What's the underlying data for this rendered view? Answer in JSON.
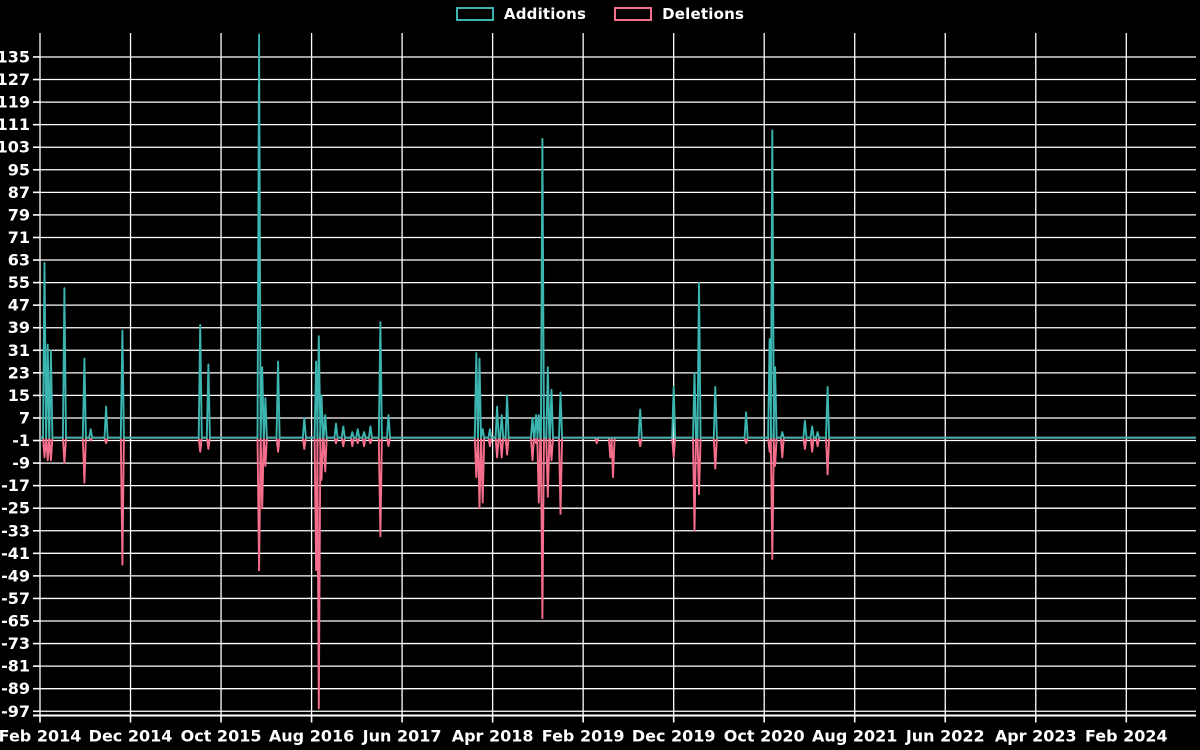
{
  "colors": {
    "background": "#000000",
    "grid": "#ffffff",
    "axis": "#ffffff",
    "text": "#ffffff",
    "additions": "#3cb4af",
    "deletions": "#f56e8c"
  },
  "legend": {
    "position": "top center",
    "additions_label": "Additions",
    "deletions_label": "Deletions"
  },
  "chart_data": {
    "type": "line",
    "title": "",
    "xlabel": "",
    "ylabel": "",
    "grid": true,
    "series": [
      {
        "name": "Additions",
        "color_key": "additions"
      },
      {
        "name": "Deletions",
        "color_key": "deletions"
      }
    ],
    "x_axis": {
      "unit": "months since Feb 2014",
      "tick_positions_months": [
        0,
        10,
        20,
        30,
        40,
        50,
        60,
        70,
        80,
        90,
        100,
        110,
        120
      ],
      "tick_labels": [
        "Feb 2014",
        "Dec 2014",
        "Oct 2015",
        "Aug 2016",
        "Jun 2017",
        "Apr 2018",
        "Feb 2019",
        "Dec 2019",
        "Oct 2020",
        "Aug 2021",
        "Jun 2022",
        "Apr 2023",
        "Feb 2024"
      ],
      "xlim_months": [
        0,
        127.7
      ]
    },
    "y_axis": {
      "tick_labels": [
        135,
        127,
        119,
        111,
        103,
        95,
        87,
        79,
        71,
        63,
        55,
        47,
        39,
        31,
        23,
        15,
        7,
        -1,
        -9,
        -17,
        -25,
        -33,
        -41,
        -49,
        -57,
        -65,
        -73,
        -81,
        -89,
        -97
      ],
      "ylim": [
        -98.5,
        143.5
      ]
    },
    "baseline_value": 0,
    "points_format": [
      "months_since_feb_2014",
      "additions",
      "deletions"
    ],
    "points": [
      [
        0.5,
        62,
        -7
      ],
      [
        0.85,
        33,
        -8
      ],
      [
        1.2,
        31,
        -8
      ],
      [
        2.7,
        53,
        -9
      ],
      [
        4.9,
        28,
        -16
      ],
      [
        5.6,
        3,
        -1
      ],
      [
        7.3,
        11,
        -2
      ],
      [
        9.1,
        38,
        -45
      ],
      [
        17.7,
        40,
        -5
      ],
      [
        18.6,
        26,
        -4
      ],
      [
        24.2,
        143,
        -47
      ],
      [
        24.55,
        25,
        -25
      ],
      [
        24.9,
        14,
        -10
      ],
      [
        26.3,
        27,
        -5
      ],
      [
        29.2,
        7,
        -4
      ],
      [
        30.5,
        27,
        -47
      ],
      [
        30.8,
        36,
        -96
      ],
      [
        31.1,
        15,
        -15
      ],
      [
        31.5,
        8,
        -12
      ],
      [
        32.7,
        5,
        -2
      ],
      [
        33.5,
        4,
        -3
      ],
      [
        34.5,
        2,
        -3
      ],
      [
        35.1,
        3,
        -2
      ],
      [
        35.8,
        2,
        -3
      ],
      [
        36.5,
        4,
        -2
      ],
      [
        37.6,
        41,
        -35
      ],
      [
        38.5,
        8,
        -3
      ],
      [
        48.2,
        30,
        -14
      ],
      [
        48.55,
        28,
        -25
      ],
      [
        48.9,
        3,
        -23
      ],
      [
        49.7,
        3,
        -3
      ],
      [
        50.5,
        11,
        -7
      ],
      [
        51.0,
        8,
        -7
      ],
      [
        51.6,
        15,
        -6
      ],
      [
        54.4,
        7,
        -8
      ],
      [
        54.8,
        8,
        -2
      ],
      [
        55.1,
        8,
        -23
      ],
      [
        55.5,
        106,
        -64
      ],
      [
        56.1,
        25,
        -21
      ],
      [
        56.5,
        17,
        -8
      ],
      [
        57.5,
        16,
        -27
      ],
      [
        61.5,
        0,
        -2
      ],
      [
        63.0,
        0,
        -7
      ],
      [
        63.3,
        0,
        -14
      ],
      [
        66.3,
        10,
        -3
      ],
      [
        70.0,
        18,
        -7
      ],
      [
        72.3,
        23,
        -33
      ],
      [
        72.8,
        55,
        -20
      ],
      [
        74.6,
        18,
        -11
      ],
      [
        78.0,
        9,
        -2
      ],
      [
        80.6,
        35,
        -5
      ],
      [
        80.9,
        109,
        -43
      ],
      [
        81.2,
        25,
        -10
      ],
      [
        82.0,
        2,
        -7
      ],
      [
        84.5,
        6,
        -4
      ],
      [
        85.3,
        4,
        -5
      ],
      [
        85.9,
        2,
        -3
      ],
      [
        87.0,
        18,
        -13
      ]
    ]
  }
}
